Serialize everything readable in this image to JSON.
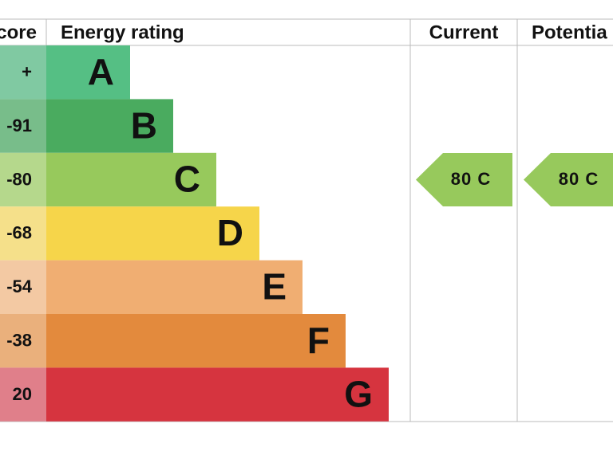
{
  "header": {
    "score": "core",
    "rating": "Energy rating",
    "current": "Current",
    "potential": "Potentia"
  },
  "rows": [
    {
      "score": "+",
      "letter": "A"
    },
    {
      "score": "-91",
      "letter": "B"
    },
    {
      "score": "-80",
      "letter": "C"
    },
    {
      "score": "-68",
      "letter": "D"
    },
    {
      "score": "-54",
      "letter": "E"
    },
    {
      "score": "-38",
      "letter": "F"
    },
    {
      "score": "20",
      "letter": "G"
    }
  ],
  "current": "80 C",
  "potential": "80 C"
}
